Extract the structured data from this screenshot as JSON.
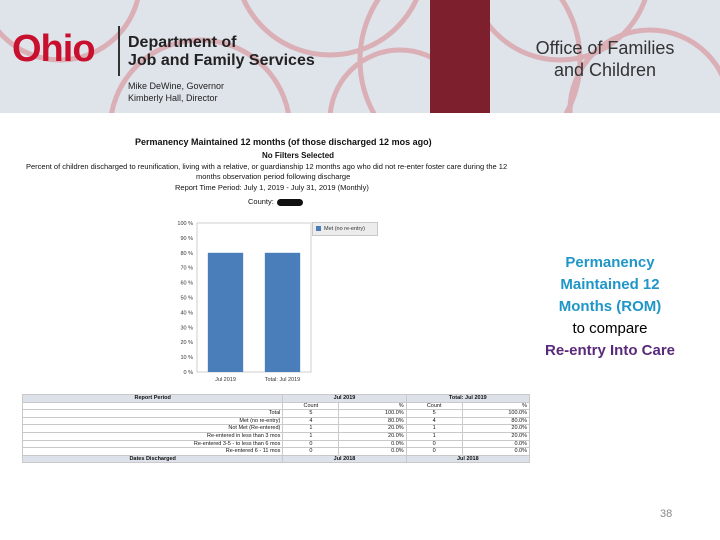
{
  "header": {
    "logo_text": "Ohio",
    "department_line1": "Department of",
    "department_line2": "Job and Family Services",
    "official_1": "Mike DeWine, Governor",
    "official_2": "Kimberly Hall, Director",
    "office_line1": "Office of Families",
    "office_line2": "and Children"
  },
  "report": {
    "title": "Permanency Maintained 12 months (of those discharged 12 mos ago)",
    "filters": "No Filters Selected",
    "description_line1": "Percent of children discharged to reunification, living with a relative, or guardianship 12 months ago who did not re-enter foster care during the 12",
    "description_line2": "months observation period following discharge",
    "period": "Report Time Period: July 1, 2019 - July 31, 2019 (Monthly)",
    "county_label": "County:"
  },
  "chart_data": {
    "type": "bar",
    "categories": [
      "Jul 2019",
      "Total: Jul 2019"
    ],
    "series": [
      {
        "name": "Met (no re-entry)",
        "values": [
          80,
          80
        ]
      }
    ],
    "y_tick_labels": [
      "0 %",
      "10 %",
      "20 %",
      "30 %",
      "40 %",
      "50 %",
      "60 %",
      "70 %",
      "80 %",
      "90 %",
      "100 %"
    ],
    "ylim": [
      0,
      100
    ],
    "bar_color": "#4a7ebb",
    "grid": false,
    "legend_position": "top-right"
  },
  "callout": {
    "line1": "Permanency",
    "line2": "Maintained 12",
    "line3": "Months (ROM)",
    "line4": "to compare",
    "line5": "Re-entry Into Care"
  },
  "table": {
    "header_row": [
      "Report Period",
      "Jul 2019",
      "Total: Jul 2019"
    ],
    "sub_header": [
      "Count",
      "%",
      "Count",
      "%"
    ],
    "rows": [
      [
        "Total",
        "5",
        "100.0%",
        "5",
        "100.0%"
      ],
      [
        "Met (no re-entry)",
        "4",
        "80.0%",
        "4",
        "80.0%"
      ],
      [
        "Not Met (Re-entered)",
        "1",
        "20.0%",
        "1",
        "20.0%"
      ],
      [
        "Re-entered in less than 3 mos",
        "1",
        "20.0%",
        "1",
        "20.0%"
      ],
      [
        "Re-entered 3-5 - to less than 6 mos",
        "0",
        "0.0%",
        "0",
        "0.0%"
      ],
      [
        "Re-entered 6 - 11 mos",
        "0",
        "0.0%",
        "0",
        "0.0%"
      ]
    ],
    "footer": [
      "Dates Discharged",
      "Jul 2018",
      "Jul 2018"
    ]
  },
  "page_number": "38",
  "colors": {
    "accent_red": "#c8102e",
    "band_maroon": "#7d1f2c",
    "callout_blue": "#1f96c7",
    "callout_purple": "#5a2a7a"
  }
}
